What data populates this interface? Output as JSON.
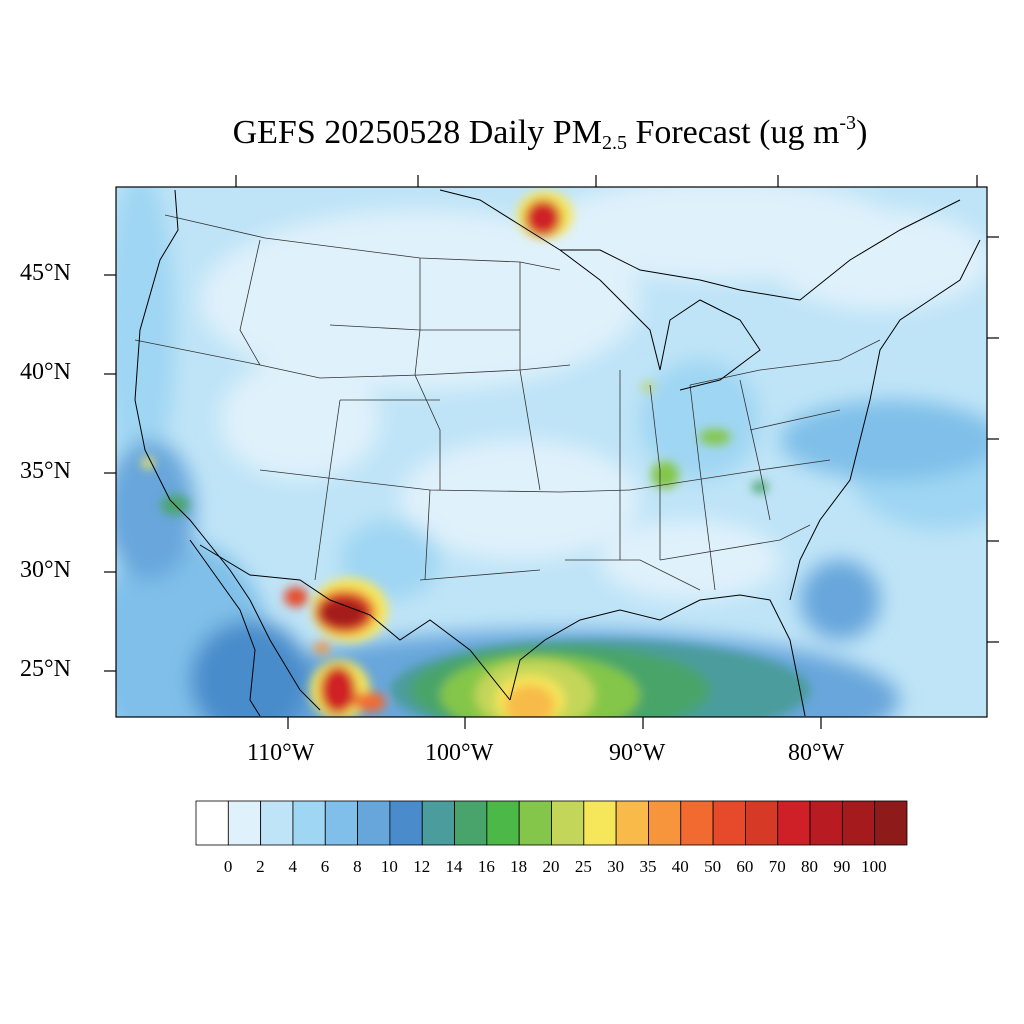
{
  "title": {
    "prefix": "GEFS 20250528 Daily PM",
    "subscript": "2.5",
    "middle": " Forecast (ug m",
    "superscript": "-3",
    "suffix": ")"
  },
  "axes": {
    "lat_labels": [
      "45°N",
      "40°N",
      "35°N",
      "30°N",
      "25°N"
    ],
    "lon_labels": [
      "110°W",
      "100°W",
      "90°W",
      "80°W"
    ]
  },
  "colorbar": {
    "labels": [
      "0",
      "2",
      "4",
      "6",
      "8",
      "10",
      "12",
      "14",
      "16",
      "18",
      "20",
      "25",
      "30",
      "35",
      "40",
      "50",
      "60",
      "70",
      "80",
      "90",
      "100"
    ],
    "colors": [
      "#ffffff",
      "#dff1fb",
      "#bfe4f7",
      "#9fd6f3",
      "#7fbfe9",
      "#67a6db",
      "#4a8ccb",
      "#4b9c9c",
      "#48a46a",
      "#4bb848",
      "#84c64a",
      "#c4d65a",
      "#f6e65a",
      "#f8bb4a",
      "#f6953c",
      "#f26a30",
      "#e64a2a",
      "#d63a26",
      "#d02027",
      "#b81c22",
      "#a51a1d",
      "#8e1a1a"
    ]
  }
}
